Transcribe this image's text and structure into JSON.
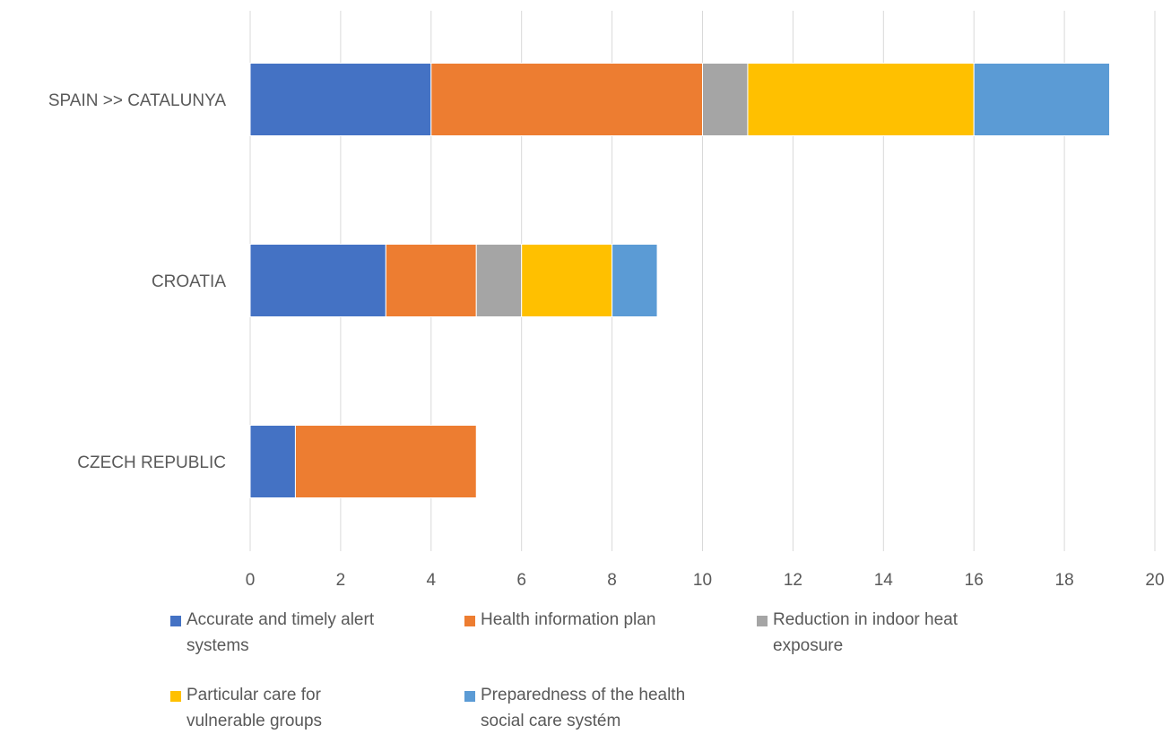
{
  "chart_data": {
    "type": "bar",
    "orientation": "horizontal",
    "stacked": true,
    "categories": [
      "SPAIN >> CATALUNYA",
      "CROATIA",
      "CZECH REPUBLIC"
    ],
    "series": [
      {
        "name": "Accurate and timely alert systems",
        "color": "#4472C4",
        "values": [
          4,
          3,
          1
        ]
      },
      {
        "name": "Health information plan",
        "color": "#ED7D31",
        "values": [
          6,
          2,
          4
        ]
      },
      {
        "name": "Reduction in indoor heat exposure",
        "color": "#A5A5A5",
        "values": [
          1,
          1,
          0
        ]
      },
      {
        "name": "Particular care for vulnerable groups",
        "color": "#FFC000",
        "values": [
          5,
          2,
          0
        ]
      },
      {
        "name": "Preparedness of the health social care systém",
        "color": "#5B9BD5",
        "values": [
          3,
          1,
          0
        ]
      }
    ],
    "xlim": [
      0,
      20
    ],
    "xticks": [
      "0",
      "2",
      "4",
      "6",
      "8",
      "10",
      "12",
      "14",
      "16",
      "18",
      "20"
    ],
    "grid": true,
    "legend_position": "bottom",
    "title": "",
    "xlabel": "",
    "ylabel": ""
  },
  "legend": {
    "line1": {
      "s0": "Accurate and timely alert",
      "s1": "Health information plan",
      "s2": "Reduction in indoor heat",
      "s3": "Particular care for",
      "s4": "Preparedness of the health"
    },
    "line2": {
      "s0": "systems",
      "s2": "exposure",
      "s3": "vulnerable groups",
      "s4": "social care systém"
    }
  }
}
